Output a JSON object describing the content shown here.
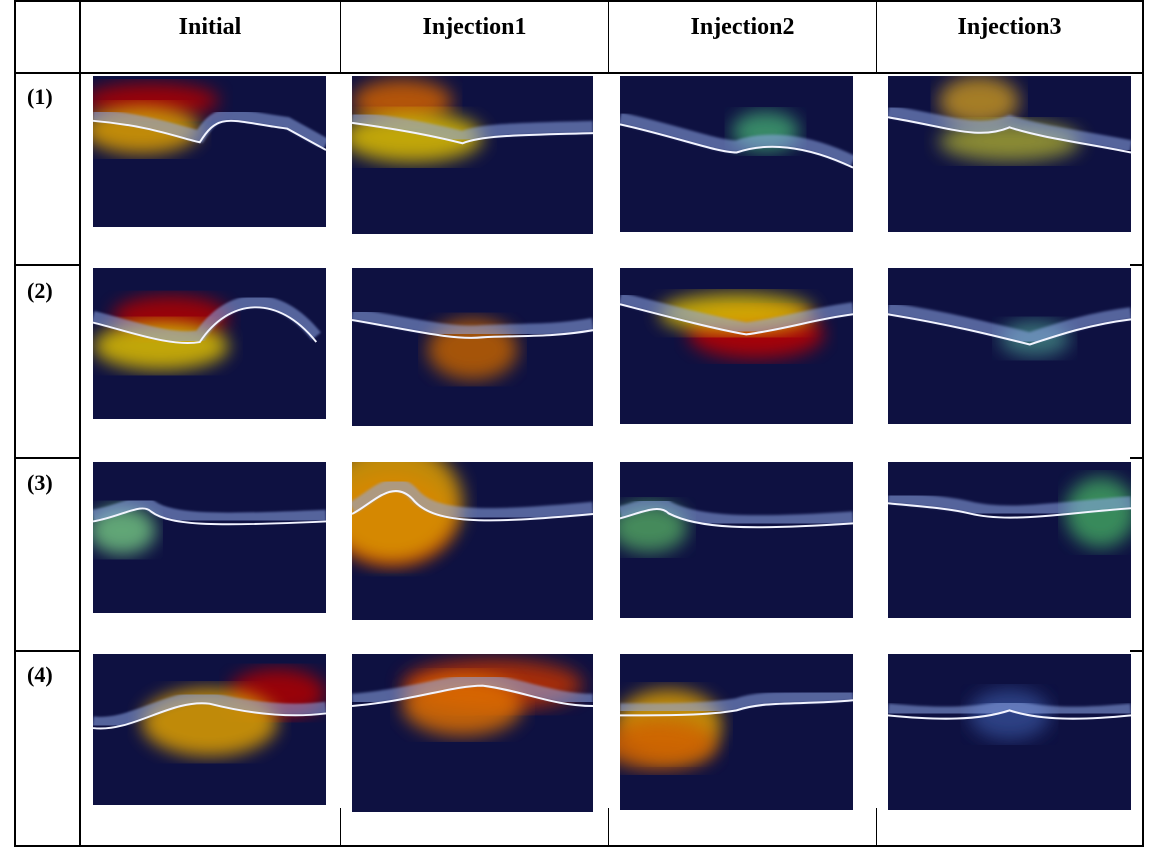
{
  "table": {
    "columns": [
      "Initial",
      "Injection1",
      "Injection2",
      "Injection3"
    ],
    "rows": [
      {
        "label": "(1)",
        "cells": [
          {
            "image": "oct-heatmap-initial-case1"
          },
          {
            "image": "oct-heatmap-injection1-case1"
          },
          {
            "image": "oct-heatmap-injection2-case1"
          },
          {
            "image": "oct-heatmap-injection3-case1"
          }
        ]
      },
      {
        "label": "(2)",
        "cells": [
          {
            "image": "oct-heatmap-initial-case2"
          },
          {
            "image": "oct-heatmap-injection1-case2"
          },
          {
            "image": "oct-heatmap-injection2-case2"
          },
          {
            "image": "oct-heatmap-injection3-case2"
          }
        ]
      },
      {
        "label": "(3)",
        "cells": [
          {
            "image": "oct-heatmap-initial-case3"
          },
          {
            "image": "oct-heatmap-injection1-case3"
          },
          {
            "image": "oct-heatmap-injection2-case3"
          },
          {
            "image": "oct-heatmap-injection3-case3"
          }
        ]
      },
      {
        "label": "(4)",
        "cells": [
          {
            "image": "oct-heatmap-initial-case4"
          },
          {
            "image": "oct-heatmap-injection1-case4"
          },
          {
            "image": "oct-heatmap-injection2-case4"
          },
          {
            "image": "oct-heatmap-injection3-case4"
          }
        ]
      }
    ]
  }
}
